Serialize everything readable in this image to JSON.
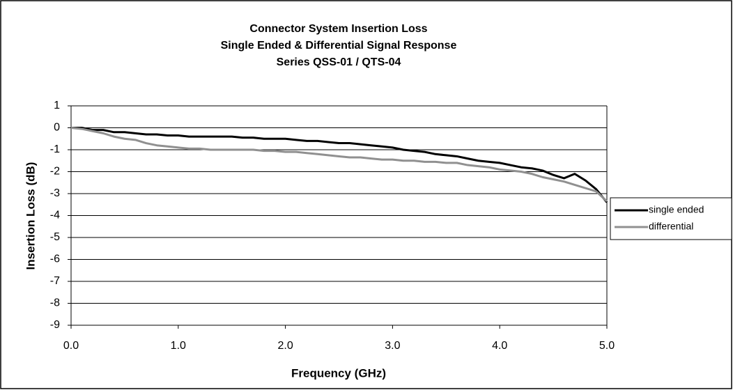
{
  "chart_data": {
    "type": "line",
    "title": [
      "Connector System Insertion Loss",
      "Single Ended & Differential Signal Response",
      "Series QSS-01 / QTS-04"
    ],
    "x_label": "Frequency (GHz)",
    "y_label": "Insertion Loss (dB)",
    "x": [
      0,
      0.1,
      0.2,
      0.3,
      0.4,
      0.5,
      0.6,
      0.7,
      0.8,
      0.9,
      1.0,
      1.1,
      1.2,
      1.3,
      1.4,
      1.5,
      1.6,
      1.7,
      1.8,
      1.9,
      2.0,
      2.1,
      2.2,
      2.3,
      2.4,
      2.5,
      2.6,
      2.7,
      2.8,
      2.9,
      3.0,
      3.1,
      3.2,
      3.3,
      3.4,
      3.5,
      3.6,
      3.7,
      3.8,
      3.9,
      4.0,
      4.1,
      4.2,
      4.3,
      4.4,
      4.5,
      4.6,
      4.7,
      4.8,
      4.9,
      5.0
    ],
    "series": [
      {
        "name": "single ended",
        "color": "#000000",
        "values": [
          0,
          0,
          -0.1,
          -0.1,
          -0.2,
          -0.2,
          -0.25,
          -0.3,
          -0.3,
          -0.35,
          -0.35,
          -0.4,
          -0.4,
          -0.4,
          -0.4,
          -0.4,
          -0.45,
          -0.45,
          -0.5,
          -0.5,
          -0.5,
          -0.55,
          -0.6,
          -0.6,
          -0.65,
          -0.7,
          -0.7,
          -0.75,
          -0.8,
          -0.85,
          -0.9,
          -1.0,
          -1.05,
          -1.1,
          -1.2,
          -1.25,
          -1.3,
          -1.4,
          -1.5,
          -1.55,
          -1.6,
          -1.7,
          -1.8,
          -1.85,
          -1.95,
          -2.15,
          -2.3,
          -2.1,
          -2.4,
          -2.8,
          -3.4
        ]
      },
      {
        "name": "differential",
        "color": "#909090",
        "values": [
          0,
          -0.05,
          -0.15,
          -0.25,
          -0.4,
          -0.5,
          -0.55,
          -0.7,
          -0.8,
          -0.85,
          -0.9,
          -0.95,
          -0.95,
          -1.0,
          -1.0,
          -1.0,
          -1.0,
          -1.0,
          -1.05,
          -1.05,
          -1.1,
          -1.1,
          -1.15,
          -1.2,
          -1.25,
          -1.3,
          -1.35,
          -1.35,
          -1.4,
          -1.45,
          -1.45,
          -1.5,
          -1.5,
          -1.55,
          -1.55,
          -1.6,
          -1.6,
          -1.7,
          -1.75,
          -1.8,
          -1.9,
          -1.95,
          -2.0,
          -2.1,
          -2.25,
          -2.35,
          -2.45,
          -2.6,
          -2.75,
          -2.9,
          -3.35
        ]
      }
    ],
    "xlim": [
      0,
      5
    ],
    "xticks": [
      {
        "value": 0,
        "label": "0.0"
      },
      {
        "value": 1,
        "label": "1.0"
      },
      {
        "value": 2,
        "label": "2.0"
      },
      {
        "value": 3,
        "label": "3.0"
      },
      {
        "value": 4,
        "label": "4.0"
      },
      {
        "value": 5,
        "label": "5.0"
      }
    ],
    "ylim": [
      -9,
      1
    ],
    "yticks": [
      -9,
      -8,
      -7,
      -6,
      -5,
      -4,
      -3,
      -2,
      -1,
      0,
      1
    ],
    "grid": true,
    "legend": "right"
  }
}
